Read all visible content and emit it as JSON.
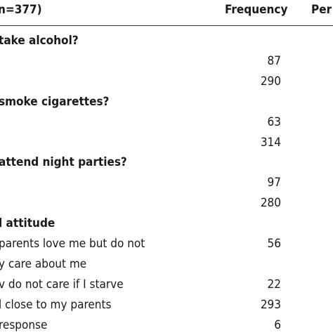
{
  "header": {
    "label": "n=377)",
    "frequency": "Frequency",
    "percent": "Per"
  },
  "sections": [
    {
      "title": "take alcohol?",
      "rows": [
        {
          "frequency": 87
        },
        {
          "frequency": 290
        }
      ]
    },
    {
      "title": "smoke cigarettes?",
      "rows": [
        {
          "frequency": 63
        },
        {
          "frequency": 314
        }
      ]
    },
    {
      "title": "attend night parties?",
      "rows": [
        {
          "frequency": 97
        },
        {
          "frequency": 280
        }
      ]
    },
    {
      "title": "l attitude",
      "rows": [
        {
          "label": "parents love me but do not",
          "frequency": 56
        },
        {
          "label": "y care about me"
        },
        {
          "label": "v do not care if I starve",
          "frequency": 22
        },
        {
          "label": "l close to my parents",
          "frequency": 293
        },
        {
          "label": "response",
          "frequency": 6
        }
      ]
    }
  ]
}
